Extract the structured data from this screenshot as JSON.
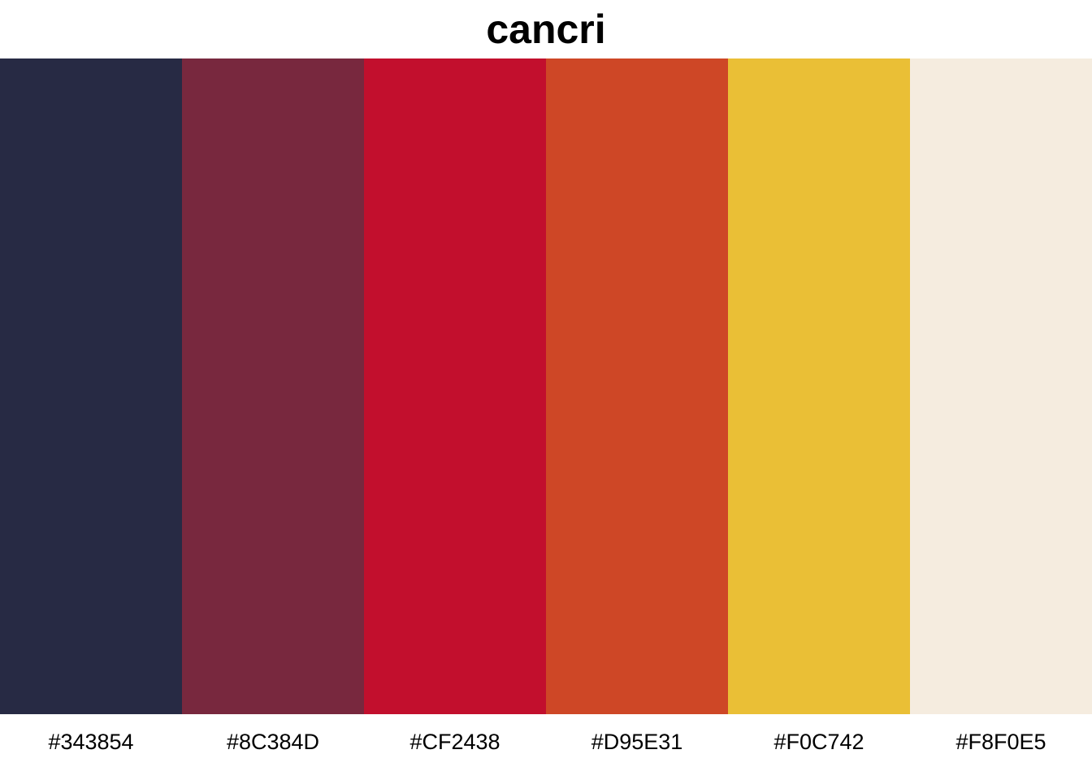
{
  "chart_data": {
    "type": "bar",
    "title": "cancri",
    "categories": [
      "#343854",
      "#8C384D",
      "#CF2438",
      "#D95E31",
      "#F0C742",
      "#F8F0E5"
    ],
    "values": [
      1,
      1,
      1,
      1,
      1,
      1
    ],
    "colors": [
      "#272A44",
      "#78283E",
      "#C20F2D",
      "#CE4726",
      "#EABF36",
      "#F5ECDF"
    ],
    "xlabel": "",
    "ylabel": "",
    "grid": false,
    "legend": "none"
  }
}
